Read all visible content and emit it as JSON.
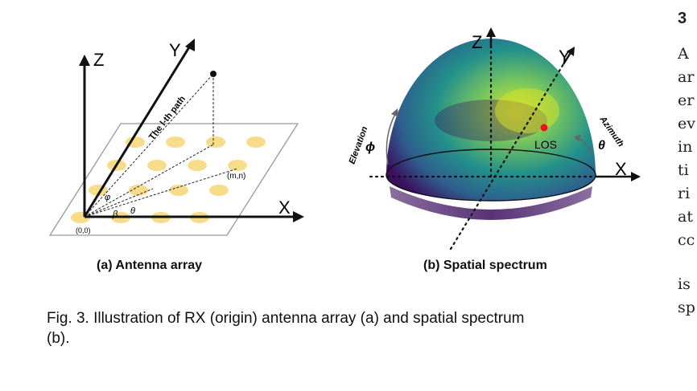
{
  "figure": {
    "panel_a": {
      "axis_labels": {
        "x": "X",
        "y": "Y",
        "z": "Z"
      },
      "path_label": "The l-th path",
      "origin_label": "(0,0)",
      "point_label": "(m,n)",
      "angle_labels": {
        "phi": "φ",
        "beta": "β",
        "theta": "θ"
      },
      "caption": "(a) Antenna array"
    },
    "panel_b": {
      "axis_labels": {
        "x": "X",
        "y": "Y",
        "z": "Z"
      },
      "elevation_label": "Elevation",
      "elevation_symbol": "ϕ",
      "azimuth_label": "Azimuth",
      "azimuth_symbol": "θ",
      "los_label": "LOS",
      "caption": "(b) Spatial spectrum"
    },
    "caption_line1": "Fig. 3. Illustration of RX (origin) antenna array (a) and spatial spectrum",
    "caption_line2": "(b)."
  },
  "right_column": {
    "section": "3",
    "lines": [
      "A",
      "ar",
      "er",
      "ev",
      "in",
      "ti",
      "ri",
      "at",
      "cc"
    ],
    "lines_after": [
      "is",
      "sp"
    ]
  },
  "colors": {
    "antenna": "#f7dc8a",
    "los_dot": "#e8151b",
    "dome_dark": "#3b0f5e",
    "dome_mid": "#23908b",
    "dome_light": "#d8e22a"
  }
}
